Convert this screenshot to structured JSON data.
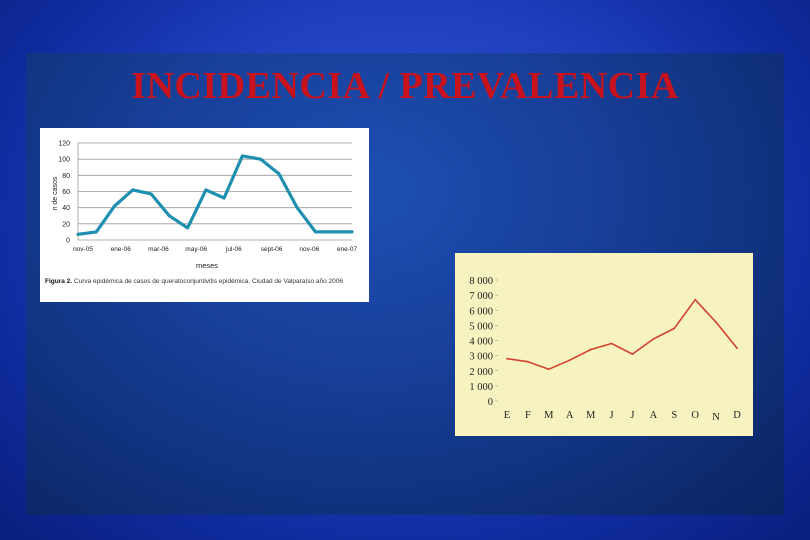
{
  "title": "INCIDENCIA / PREVALENCIA",
  "colors": {
    "title": "#c8121d",
    "line1": "#1f8fb0",
    "line2": "#d2432f",
    "panel2_bg": "#f7f3c1"
  },
  "chart_data": [
    {
      "type": "line",
      "ylabel": "n de casos",
      "xlabel": "meses",
      "ylim": [
        0,
        120
      ],
      "yticks": [
        "120",
        "100",
        "80",
        "60",
        "40",
        "20",
        "0"
      ],
      "x_tick_labels": [
        "nov-05",
        "ene-06",
        "mar-06",
        "may-06",
        "jul-06",
        "sept-06",
        "nov-06",
        "ene-07"
      ],
      "series": [
        {
          "values": [
            7,
            10,
            42,
            62,
            57,
            30,
            15,
            62,
            52,
            104,
            100,
            82,
            40,
            10,
            10,
            10
          ]
        }
      ],
      "caption_label": "Figura 2.",
      "caption_text": "Curva epidémica de casos de queratoconjuntivitis epidémica. Ciudad de Valparaíso año 2006",
      "grid": true
    },
    {
      "type": "line",
      "ylim": [
        0,
        8000
      ],
      "yticks": [
        "8 000",
        "7 000",
        "6 000",
        "5 000",
        "4 000",
        "3 000",
        "2 000",
        "1 000",
        "0"
      ],
      "categories": [
        "E",
        "F",
        "M",
        "A",
        "M",
        "J",
        "J",
        "A",
        "S",
        "O",
        "N",
        "D"
      ],
      "series": [
        {
          "values": [
            2800,
            2600,
            2100,
            2700,
            3400,
            3800,
            3100,
            4100,
            4800,
            6700,
            5200,
            3500
          ]
        }
      ],
      "grid": false
    }
  ]
}
